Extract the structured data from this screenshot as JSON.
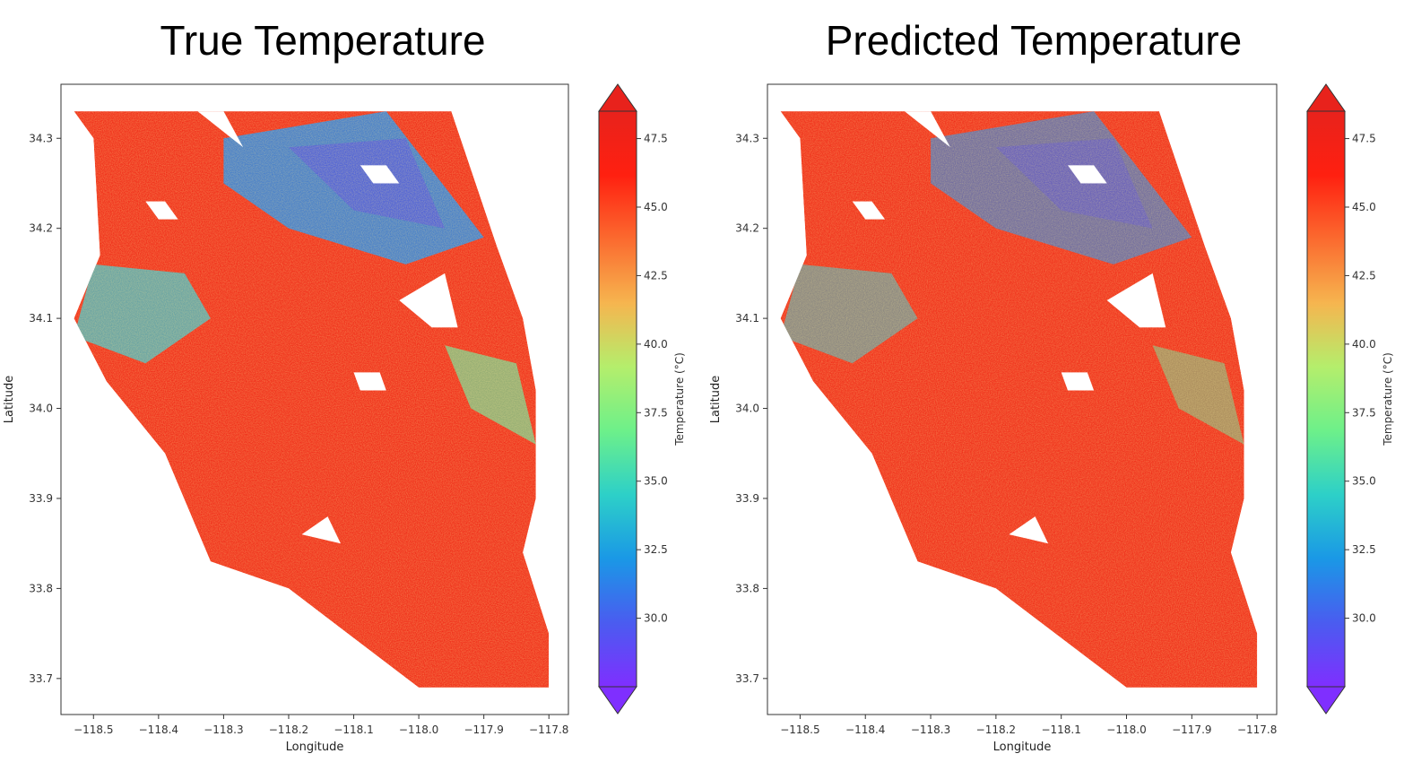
{
  "chart_data": [
    {
      "type": "heatmap",
      "title": "True Temperature",
      "xlabel": "Longitude",
      "ylabel": "Latitude",
      "xlim": [
        -118.55,
        -117.77
      ],
      "ylim": [
        33.66,
        34.36
      ],
      "xticks": [
        -118.5,
        -118.4,
        -118.3,
        -118.2,
        -118.1,
        -118.0,
        -117.9,
        -117.8
      ],
      "xtick_labels": [
        "−118.5",
        "−118.4",
        "−118.3",
        "−118.2",
        "−118.1",
        "−118.0",
        "−117.9",
        "−117.8"
      ],
      "yticks": [
        33.7,
        33.8,
        33.9,
        34.0,
        34.1,
        34.2,
        34.3
      ],
      "ytick_labels": [
        "33.7",
        "33.8",
        "33.9",
        "34.0",
        "34.1",
        "34.2",
        "34.3"
      ],
      "colorbar": {
        "label": "Temperature (°C)",
        "colormap": "rainbow",
        "range": [
          27.5,
          48.5
        ],
        "extend": "both",
        "ticks": [
          30.0,
          32.5,
          35.0,
          37.5,
          40.0,
          42.5,
          45.0,
          47.5
        ],
        "tick_labels": [
          "30.0",
          "32.5",
          "35.0",
          "37.5",
          "40.0",
          "42.5",
          "45.0",
          "47.5"
        ]
      },
      "grid": false
    },
    {
      "type": "heatmap",
      "title": "Predicted Temperature",
      "xlabel": "Longitude",
      "ylabel": "Latitude",
      "xlim": [
        -118.55,
        -117.77
      ],
      "ylim": [
        33.66,
        34.36
      ],
      "xticks": [
        -118.5,
        -118.4,
        -118.3,
        -118.2,
        -118.1,
        -118.0,
        -117.9,
        -117.8
      ],
      "xtick_labels": [
        "−118.5",
        "−118.4",
        "−118.3",
        "−118.2",
        "−118.1",
        "−118.0",
        "−117.9",
        "−117.8"
      ],
      "yticks": [
        33.7,
        33.8,
        33.9,
        34.0,
        34.1,
        34.2,
        34.3
      ],
      "ytick_labels": [
        "33.7",
        "33.8",
        "33.9",
        "34.0",
        "34.1",
        "34.2",
        "34.3"
      ],
      "colorbar": {
        "label": "Temperature (°C)",
        "colormap": "rainbow",
        "range": [
          27.5,
          48.5
        ],
        "extend": "both",
        "ticks": [
          30.0,
          32.5,
          35.0,
          37.5,
          40.0,
          42.5,
          45.0,
          47.5
        ],
        "tick_labels": [
          "30.0",
          "32.5",
          "35.0",
          "37.5",
          "40.0",
          "42.5",
          "45.0",
          "47.5"
        ]
      },
      "grid": false
    }
  ]
}
